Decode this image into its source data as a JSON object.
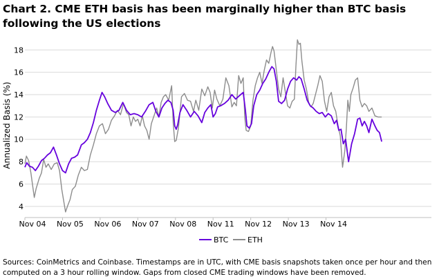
{
  "title": "Chart 2. CME ETH basis has been marginally higher than BTC basis following the US elections",
  "footer": "Sources: CoinMetrics and Coinbase. Timestamps are in UTC, with CME basis snapshots taken once per hour and then computed on a 3 hour rolling window. Gaps from closed CME trading windows have been removed.",
  "colors": {
    "btc": "#6600dd",
    "eth": "#8c8c8c",
    "grid": "#d9d9d9"
  },
  "chart_data": {
    "type": "line",
    "title": "Chart 2. CME ETH basis has been marginally higher than BTC basis following the US elections",
    "xlabel": "",
    "ylabel": "Annualized Basis (%)",
    "ylim": [
      3,
      19.5
    ],
    "yticks": [
      4,
      6,
      8,
      10,
      12,
      14,
      16,
      18
    ],
    "xlim": [
      0,
      10.8
    ],
    "xticks": [
      {
        "pos": 0,
        "label": "Nov 04"
      },
      {
        "pos": 1,
        "label": "Nov 05"
      },
      {
        "pos": 2,
        "label": "Nov 06"
      },
      {
        "pos": 3,
        "label": "Nov 07"
      },
      {
        "pos": 4,
        "label": "Nov 08"
      },
      {
        "pos": 5,
        "label": "Nov 11"
      },
      {
        "pos": 6,
        "label": "Nov 12"
      },
      {
        "pos": 7,
        "label": "Nov 13"
      },
      {
        "pos": 8,
        "label": "Nov 14"
      }
    ],
    "grid": "horizontal",
    "legend": "bottom-center",
    "series": [
      {
        "name": "BTC",
        "color": "#6600dd",
        "points": [
          [
            0.0,
            7.5
          ],
          [
            0.05,
            7.9
          ],
          [
            0.12,
            7.6
          ],
          [
            0.2,
            7.5
          ],
          [
            0.28,
            7.2
          ],
          [
            0.36,
            7.6
          ],
          [
            0.44,
            8.1
          ],
          [
            0.52,
            8.3
          ],
          [
            0.6,
            8.6
          ],
          [
            0.68,
            8.8
          ],
          [
            0.76,
            9.3
          ],
          [
            0.84,
            8.6
          ],
          [
            0.92,
            7.8
          ],
          [
            1.0,
            7.2
          ],
          [
            1.08,
            7.0
          ],
          [
            1.16,
            7.8
          ],
          [
            1.24,
            8.3
          ],
          [
            1.32,
            8.4
          ],
          [
            1.4,
            8.6
          ],
          [
            1.5,
            9.5
          ],
          [
            1.58,
            9.7
          ],
          [
            1.66,
            10.0
          ],
          [
            1.74,
            10.6
          ],
          [
            1.82,
            11.5
          ],
          [
            1.9,
            12.6
          ],
          [
            1.98,
            13.5
          ],
          [
            2.05,
            14.2
          ],
          [
            2.12,
            13.8
          ],
          [
            2.2,
            13.2
          ],
          [
            2.3,
            12.6
          ],
          [
            2.4,
            12.4
          ],
          [
            2.5,
            12.6
          ],
          [
            2.6,
            13.3
          ],
          [
            2.7,
            12.6
          ],
          [
            2.8,
            12.2
          ],
          [
            2.9,
            12.3
          ],
          [
            3.0,
            12.2
          ],
          [
            3.1,
            12.0
          ],
          [
            3.2,
            12.5
          ],
          [
            3.3,
            13.1
          ],
          [
            3.4,
            13.3
          ],
          [
            3.48,
            12.5
          ],
          [
            3.56,
            12.0
          ],
          [
            3.64,
            12.8
          ],
          [
            3.72,
            13.2
          ],
          [
            3.8,
            13.5
          ],
          [
            3.88,
            13.3
          ],
          [
            3.94,
            12.6
          ],
          [
            3.98,
            11.2
          ],
          [
            4.02,
            10.9
          ],
          [
            4.06,
            11.3
          ],
          [
            4.12,
            12.4
          ],
          [
            4.2,
            13.1
          ],
          [
            4.3,
            12.6
          ],
          [
            4.4,
            12.0
          ],
          [
            4.5,
            12.5
          ],
          [
            4.6,
            12.1
          ],
          [
            4.7,
            11.5
          ],
          [
            4.78,
            12.4
          ],
          [
            4.86,
            12.8
          ],
          [
            4.94,
            13.1
          ],
          [
            5.0,
            12.0
          ],
          [
            5.06,
            12.3
          ],
          [
            5.12,
            12.9
          ],
          [
            5.2,
            13.0
          ],
          [
            5.3,
            13.2
          ],
          [
            5.4,
            13.5
          ],
          [
            5.5,
            14.0
          ],
          [
            5.6,
            13.6
          ],
          [
            5.7,
            13.9
          ],
          [
            5.8,
            14.2
          ],
          [
            5.86,
            12.6
          ],
          [
            5.9,
            11.2
          ],
          [
            5.96,
            11.0
          ],
          [
            6.02,
            11.4
          ],
          [
            6.08,
            13.0
          ],
          [
            6.16,
            14.0
          ],
          [
            6.24,
            14.4
          ],
          [
            6.32,
            15.0
          ],
          [
            6.4,
            15.4
          ],
          [
            6.48,
            16.0
          ],
          [
            6.56,
            16.5
          ],
          [
            6.62,
            16.3
          ],
          [
            6.68,
            15.2
          ],
          [
            6.74,
            13.4
          ],
          [
            6.82,
            13.2
          ],
          [
            6.9,
            13.5
          ],
          [
            6.98,
            14.5
          ],
          [
            7.06,
            15.2
          ],
          [
            7.14,
            15.5
          ],
          [
            7.22,
            15.3
          ],
          [
            7.28,
            15.6
          ],
          [
            7.34,
            15.4
          ],
          [
            7.42,
            14.5
          ],
          [
            7.5,
            13.5
          ],
          [
            7.58,
            13.0
          ],
          [
            7.66,
            12.8
          ],
          [
            7.74,
            12.5
          ],
          [
            7.82,
            12.3
          ],
          [
            7.9,
            12.4
          ],
          [
            7.98,
            12.0
          ],
          [
            8.06,
            12.3
          ],
          [
            8.14,
            12.1
          ],
          [
            8.22,
            11.4
          ],
          [
            8.28,
            11.7
          ],
          [
            8.34,
            10.8
          ],
          [
            8.4,
            10.9
          ],
          [
            8.46,
            9.6
          ],
          [
            8.52,
            10.0
          ],
          [
            8.6,
            8.0
          ],
          [
            8.68,
            9.6
          ],
          [
            8.76,
            10.5
          ],
          [
            8.84,
            11.8
          ],
          [
            8.9,
            11.9
          ],
          [
            8.96,
            11.2
          ],
          [
            9.02,
            11.6
          ],
          [
            9.08,
            11.2
          ],
          [
            9.14,
            10.6
          ],
          [
            9.22,
            11.8
          ],
          [
            9.3,
            11.2
          ],
          [
            9.36,
            10.8
          ],
          [
            9.42,
            10.6
          ],
          [
            9.48,
            9.8
          ]
        ]
      },
      {
        "name": "ETH",
        "color": "#8c8c8c",
        "points": [
          [
            0.0,
            7.8
          ],
          [
            0.04,
            8.5
          ],
          [
            0.1,
            8.1
          ],
          [
            0.16,
            7.0
          ],
          [
            0.2,
            6.0
          ],
          [
            0.25,
            4.8
          ],
          [
            0.3,
            5.6
          ],
          [
            0.38,
            6.5
          ],
          [
            0.44,
            7.0
          ],
          [
            0.5,
            8.2
          ],
          [
            0.56,
            7.5
          ],
          [
            0.62,
            7.8
          ],
          [
            0.7,
            7.3
          ],
          [
            0.78,
            7.8
          ],
          [
            0.86,
            7.9
          ],
          [
            0.92,
            7.2
          ],
          [
            0.98,
            5.5
          ],
          [
            1.03,
            4.5
          ],
          [
            1.08,
            3.5
          ],
          [
            1.14,
            4.1
          ],
          [
            1.2,
            4.6
          ],
          [
            1.26,
            5.5
          ],
          [
            1.34,
            5.8
          ],
          [
            1.42,
            6.8
          ],
          [
            1.5,
            7.5
          ],
          [
            1.58,
            7.2
          ],
          [
            1.66,
            7.3
          ],
          [
            1.74,
            8.6
          ],
          [
            1.82,
            9.5
          ],
          [
            1.9,
            10.5
          ],
          [
            1.98,
            11.2
          ],
          [
            2.06,
            11.4
          ],
          [
            2.14,
            10.5
          ],
          [
            2.22,
            10.9
          ],
          [
            2.3,
            11.7
          ],
          [
            2.38,
            12.1
          ],
          [
            2.46,
            12.6
          ],
          [
            2.54,
            12.2
          ],
          [
            2.62,
            13.2
          ],
          [
            2.7,
            12.4
          ],
          [
            2.76,
            12.2
          ],
          [
            2.82,
            11.2
          ],
          [
            2.88,
            12.0
          ],
          [
            2.94,
            11.6
          ],
          [
            3.0,
            11.8
          ],
          [
            3.06,
            11.2
          ],
          [
            3.12,
            12.1
          ],
          [
            3.18,
            11.2
          ],
          [
            3.24,
            10.8
          ],
          [
            3.3,
            10.0
          ],
          [
            3.36,
            11.4
          ],
          [
            3.44,
            12.2
          ],
          [
            3.5,
            12.8
          ],
          [
            3.56,
            12.0
          ],
          [
            3.62,
            13.3
          ],
          [
            3.68,
            13.8
          ],
          [
            3.74,
            14.0
          ],
          [
            3.82,
            13.5
          ],
          [
            3.9,
            14.8
          ],
          [
            3.94,
            11.5
          ],
          [
            3.98,
            9.8
          ],
          [
            4.02,
            9.9
          ],
          [
            4.08,
            11.0
          ],
          [
            4.16,
            13.8
          ],
          [
            4.24,
            14.1
          ],
          [
            4.32,
            13.5
          ],
          [
            4.4,
            13.4
          ],
          [
            4.48,
            12.5
          ],
          [
            4.54,
            13.5
          ],
          [
            4.62,
            12.6
          ],
          [
            4.7,
            14.5
          ],
          [
            4.78,
            13.9
          ],
          [
            4.86,
            14.7
          ],
          [
            4.92,
            14.2
          ],
          [
            4.98,
            12.8
          ],
          [
            5.04,
            14.4
          ],
          [
            5.1,
            13.6
          ],
          [
            5.18,
            13.0
          ],
          [
            5.26,
            13.6
          ],
          [
            5.34,
            15.5
          ],
          [
            5.42,
            14.8
          ],
          [
            5.5,
            12.9
          ],
          [
            5.56,
            13.3
          ],
          [
            5.62,
            13.0
          ],
          [
            5.68,
            15.7
          ],
          [
            5.74,
            15.0
          ],
          [
            5.8,
            15.5
          ],
          [
            5.84,
            12.0
          ],
          [
            5.88,
            10.8
          ],
          [
            5.94,
            10.7
          ],
          [
            6.0,
            11.2
          ],
          [
            6.06,
            13.5
          ],
          [
            6.12,
            14.8
          ],
          [
            6.18,
            15.5
          ],
          [
            6.24,
            16.0
          ],
          [
            6.3,
            15.0
          ],
          [
            6.36,
            16.2
          ],
          [
            6.42,
            17.1
          ],
          [
            6.48,
            16.8
          ],
          [
            6.54,
            17.8
          ],
          [
            6.58,
            18.3
          ],
          [
            6.62,
            17.9
          ],
          [
            6.68,
            16.2
          ],
          [
            6.74,
            14.5
          ],
          [
            6.8,
            13.8
          ],
          [
            6.86,
            15.5
          ],
          [
            6.92,
            14.2
          ],
          [
            6.98,
            13.0
          ],
          [
            7.04,
            12.8
          ],
          [
            7.1,
            13.4
          ],
          [
            7.16,
            13.6
          ],
          [
            7.2,
            16.5
          ],
          [
            7.24,
            18.9
          ],
          [
            7.28,
            18.5
          ],
          [
            7.32,
            18.6
          ],
          [
            7.36,
            17.0
          ],
          [
            7.42,
            15.3
          ],
          [
            7.48,
            14.5
          ],
          [
            7.54,
            13.3
          ],
          [
            7.6,
            12.9
          ],
          [
            7.66,
            13.2
          ],
          [
            7.72,
            14.0
          ],
          [
            7.78,
            14.8
          ],
          [
            7.84,
            15.7
          ],
          [
            7.9,
            15.2
          ],
          [
            7.96,
            13.4
          ],
          [
            8.02,
            12.5
          ],
          [
            8.08,
            13.8
          ],
          [
            8.14,
            14.2
          ],
          [
            8.2,
            13.0
          ],
          [
            8.26,
            12.5
          ],
          [
            8.32,
            11.2
          ],
          [
            8.38,
            10.3
          ],
          [
            8.44,
            7.5
          ],
          [
            8.5,
            9.0
          ],
          [
            8.54,
            11.0
          ],
          [
            8.58,
            13.5
          ],
          [
            8.62,
            12.5
          ],
          [
            8.66,
            14.0
          ],
          [
            8.72,
            14.6
          ],
          [
            8.78,
            15.3
          ],
          [
            8.84,
            15.5
          ],
          [
            8.9,
            13.5
          ],
          [
            8.96,
            12.9
          ],
          [
            9.02,
            13.2
          ],
          [
            9.08,
            13.0
          ],
          [
            9.14,
            12.5
          ],
          [
            9.22,
            12.8
          ],
          [
            9.3,
            12.1
          ],
          [
            9.38,
            12.0
          ],
          [
            9.48,
            12.0
          ]
        ]
      }
    ]
  }
}
